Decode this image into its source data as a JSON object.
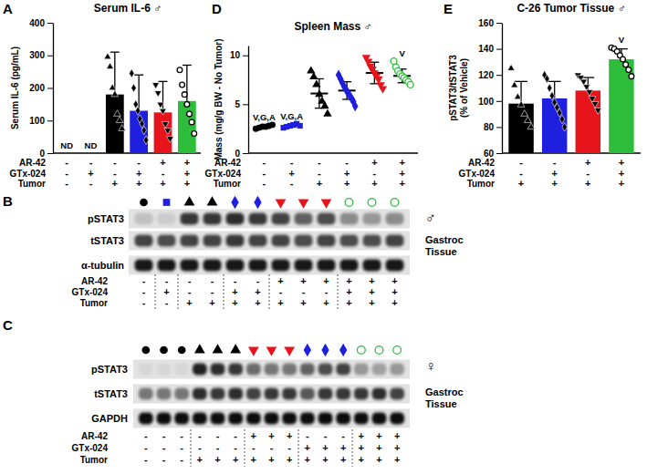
{
  "chart_data": [
    {
      "panel": "A",
      "type": "bar",
      "title": "Serum IL-6 ♂",
      "ylabel": "Serum IL-6 (pg/mL)",
      "categories": [
        null,
        null,
        null,
        null,
        null,
        null
      ],
      "values": [
        null,
        null,
        180,
        130,
        125,
        160
      ],
      "errors": [
        null,
        null,
        130,
        110,
        95,
        110
      ],
      "points": [
        [],
        [],
        [
          295,
          265,
          200,
          180,
          120,
          100,
          75
        ],
        [
          245,
          200,
          150,
          130,
          105,
          90,
          70,
          40
        ],
        [
          210,
          185,
          150,
          130,
          90,
          70,
          45
        ],
        [
          255,
          210,
          180,
          150,
          120,
          95,
          60
        ]
      ],
      "colors": [
        null,
        null,
        "#000000",
        "#1f1fe0",
        "#e8141c",
        "#2ebd3b"
      ],
      "markers": [
        null,
        null,
        "triangle",
        "diamond",
        "triangle-down",
        "circle-open"
      ],
      "annotations": [
        "ND",
        "ND",
        null,
        null,
        null,
        null
      ],
      "ylim": [
        0,
        400
      ],
      "yticks": [
        0,
        100,
        200,
        300,
        400
      ],
      "conditions": {
        "rows": [
          "AR-42",
          "GTx-024",
          "Tumor"
        ],
        "signs": [
          [
            "-",
            "-",
            "-",
            "-",
            "+",
            "+"
          ],
          [
            "-",
            "+",
            "-",
            "+",
            "-",
            "+"
          ],
          [
            "-",
            "-",
            "+",
            "+",
            "+",
            "+"
          ]
        ]
      }
    },
    {
      "panel": "D",
      "type": "scatter",
      "title": "Spleen Mass ♂",
      "ylabel": "Mass (mg/g BW - No Tumor)",
      "categories": [
        null,
        null,
        null,
        null,
        null,
        null
      ],
      "values": [
        2.7,
        2.8,
        6.1,
        6.4,
        8.2,
        7.9
      ],
      "errors": [
        0.15,
        0.15,
        1.5,
        0.9,
        1.1,
        0.7
      ],
      "points": [
        [
          2.5,
          2.6,
          2.7,
          2.7,
          2.8,
          2.9
        ],
        [
          2.6,
          2.7,
          2.8,
          2.9,
          3.0,
          2.8
        ],
        [
          8.4,
          7.8,
          7.0,
          6.0,
          5.3,
          4.8,
          4.0
        ],
        [
          8.0,
          7.6,
          7.2,
          6.8,
          6.5,
          6.2,
          5.9,
          5.6,
          5.3,
          4.8
        ],
        [
          9.8,
          9.4,
          8.9,
          8.6,
          8.2,
          7.9,
          7.6,
          7.0,
          6.6
        ],
        [
          9.4,
          8.8,
          8.4,
          8.1,
          7.9,
          7.7,
          7.5,
          7.3,
          7.0
        ]
      ],
      "colors": [
        "#000000",
        "#1f1fe0",
        "#000000",
        "#1f1fe0",
        "#e8141c",
        "#2ebd3b"
      ],
      "markers": [
        "circle",
        "square",
        "triangle",
        "diamond",
        "triangle-down",
        "circle-open"
      ],
      "annotations": [
        "V,G,A",
        "V,G,A",
        null,
        null,
        null,
        "V"
      ],
      "ylim": [
        0,
        11
      ],
      "yticks": [
        0,
        5,
        10
      ],
      "conditions": {
        "rows": [
          "AR-42",
          "GTx-024",
          "Tumor"
        ],
        "signs": [
          [
            "-",
            "-",
            "-",
            "-",
            "+",
            "+"
          ],
          [
            "-",
            "+",
            "-",
            "+",
            "-",
            "+"
          ],
          [
            "-",
            "-",
            "+",
            "+",
            "+",
            "+"
          ]
        ]
      }
    },
    {
      "panel": "E",
      "type": "bar",
      "title": "C-26 Tumor Tissue ♂",
      "ylabel": [
        "pSTAT3/tSTAT3",
        "(% of Vehicle)"
      ],
      "categories": [
        null,
        null,
        null,
        null
      ],
      "values": [
        98,
        102,
        108,
        132
      ],
      "errors": [
        17,
        13,
        10,
        8
      ],
      "points": [
        [
          125,
          112,
          103,
          97,
          90,
          85,
          80
        ],
        [
          120,
          117,
          110,
          104,
          99,
          95,
          91,
          86,
          80
        ],
        [
          120,
          118,
          115,
          111,
          107,
          102,
          98,
          93
        ],
        [
          141,
          140,
          138,
          135,
          132,
          128,
          124,
          119
        ]
      ],
      "colors": [
        "#000000",
        "#1f1fe0",
        "#e8141c",
        "#2ebd3b"
      ],
      "markers": [
        "triangle",
        "diamond",
        "triangle-down",
        "circle-open"
      ],
      "annotations": [
        null,
        null,
        null,
        "V"
      ],
      "ylim": [
        60,
        160
      ],
      "yticks": [
        60,
        80,
        100,
        120,
        140,
        160
      ],
      "conditions": {
        "rows": [
          "AR-42",
          "GTx-024",
          "Tumor"
        ],
        "signs": [
          [
            "-",
            "-",
            "+",
            "+"
          ],
          [
            "-",
            "+",
            "-",
            "+"
          ],
          [
            "+",
            "+",
            "+",
            "+"
          ]
        ]
      }
    },
    {
      "panel": "B",
      "type": "blot",
      "title": [
        "Gastroc",
        "Tissue"
      ],
      "sex": "♂",
      "markers": [
        "circle",
        "square",
        "triangle",
        "triangle",
        "diamond",
        "diamond",
        "triangle-down",
        "triangle-down",
        "triangle-down",
        "circle-open",
        "circle-open",
        "circle-open"
      ],
      "colors": [
        "#000000",
        "#1f1fe0",
        "#000000",
        "#000000",
        "#1f1fe0",
        "#1f1fe0",
        "#e8141c",
        "#e8141c",
        "#e8141c",
        "#2ebd3b",
        "#2ebd3b",
        "#2ebd3b"
      ],
      "bands": [
        {
          "name": "pSTAT3",
          "values": [
            0.15,
            0.1,
            0.8,
            0.8,
            0.85,
            0.8,
            0.75,
            0.6,
            0.7,
            0.4,
            0.35,
            0.4
          ]
        },
        {
          "name": "tSTAT3",
          "values": [
            0.75,
            0.7,
            0.75,
            0.75,
            0.8,
            0.75,
            0.75,
            0.7,
            0.75,
            0.7,
            0.7,
            0.75
          ]
        },
        {
          "name": "α-tubulin",
          "values": [
            0.95,
            0.95,
            0.95,
            0.95,
            0.95,
            0.95,
            0.95,
            0.95,
            0.95,
            0.95,
            0.95,
            0.95
          ]
        }
      ],
      "conditions": {
        "rows": [
          "AR-42",
          "GTx-024",
          "Tumor"
        ],
        "signs": [
          [
            "-",
            "-",
            "-",
            "-",
            "-",
            "-",
            "+",
            "+",
            "+",
            "+",
            "+",
            "+"
          ],
          [
            "-",
            "+",
            "-",
            "-",
            "+",
            "+",
            "-",
            "-",
            "-",
            "+",
            "+",
            "+"
          ],
          [
            "-",
            "-",
            "+",
            "+",
            "+",
            "+",
            "+",
            "+",
            "+",
            "+",
            "+",
            "+"
          ]
        ]
      }
    },
    {
      "panel": "C",
      "type": "blot",
      "title": [
        "Gastroc",
        "Tissue"
      ],
      "sex": "♀",
      "markers": [
        "circle",
        "circle",
        "circle",
        "triangle",
        "triangle",
        "triangle",
        "triangle-down",
        "triangle-down",
        "triangle-down",
        "diamond",
        "diamond",
        "diamond",
        "circle-open",
        "circle-open",
        "circle-open"
      ],
      "colors": [
        "#000000",
        "#000000",
        "#000000",
        "#000000",
        "#000000",
        "#000000",
        "#e8141c",
        "#e8141c",
        "#e8141c",
        "#1f1fe0",
        "#1f1fe0",
        "#1f1fe0",
        "#2ebd3b",
        "#2ebd3b",
        "#2ebd3b"
      ],
      "bands": [
        {
          "name": "pSTAT3",
          "values": [
            0.05,
            0.05,
            0.05,
            0.9,
            0.85,
            0.8,
            0.55,
            0.5,
            0.5,
            0.6,
            0.7,
            0.75,
            0.35,
            0.3,
            0.35
          ]
        },
        {
          "name": "tSTAT3",
          "values": [
            0.5,
            0.5,
            0.5,
            0.85,
            0.8,
            0.85,
            0.75,
            0.8,
            0.8,
            0.65,
            0.8,
            0.8,
            0.8,
            0.85,
            0.75
          ]
        },
        {
          "name": "GAPDH",
          "values": [
            1,
            1,
            1,
            1,
            1,
            1,
            1,
            1,
            1,
            1,
            1,
            1,
            1,
            1,
            1
          ]
        }
      ],
      "conditions": {
        "rows": [
          "AR-42",
          "GTx-024",
          "Tumor"
        ],
        "signs": [
          [
            "-",
            "-",
            "-",
            "-",
            "-",
            "-",
            "+",
            "+",
            "+",
            "-",
            "-",
            "-",
            "+",
            "+",
            "+"
          ],
          [
            "-",
            "-",
            "-",
            "-",
            "-",
            "-",
            "-",
            "-",
            "-",
            "+",
            "+",
            "+",
            "+",
            "+",
            "+"
          ],
          [
            "-",
            "-",
            "-",
            "+",
            "+",
            "+",
            "+",
            "+",
            "+",
            "+",
            "+",
            "+",
            "+",
            "+",
            "+"
          ]
        ]
      }
    }
  ]
}
